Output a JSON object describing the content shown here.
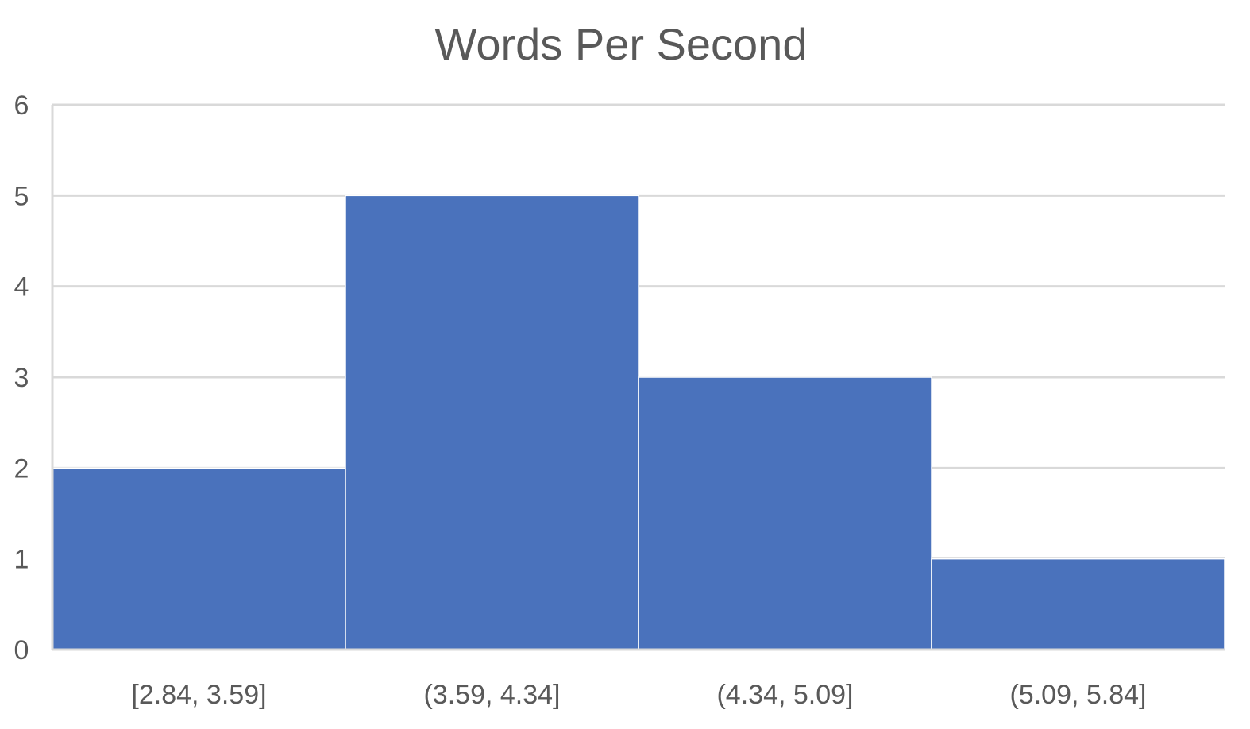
{
  "chart_data": {
    "type": "bar",
    "title": "Words Per Second",
    "categories": [
      "[2.84, 3.59]",
      "(3.59, 4.34]",
      "(4.34, 5.09]",
      "(5.09, 5.84]"
    ],
    "values": [
      2,
      5,
      3,
      1
    ],
    "xlabel": "",
    "ylabel": "",
    "ylim": [
      0,
      6
    ],
    "yticks": [
      "0",
      "1",
      "2",
      "3",
      "4",
      "5",
      "6"
    ],
    "grid": true,
    "legend": "none",
    "bar_color": "#4a72bc",
    "histogram": true
  }
}
